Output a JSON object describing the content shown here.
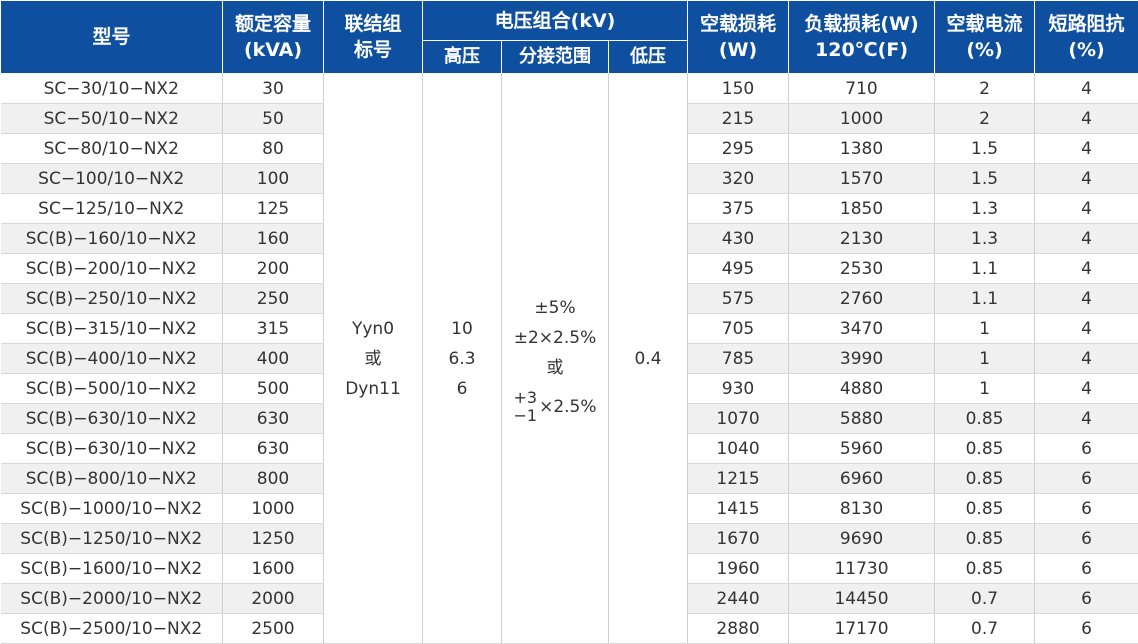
{
  "header": {
    "model": "型号",
    "capacity": "额定容量\n(kVA)",
    "connection": "联结组\n标号",
    "voltage_group": "电压组合(kV)",
    "hv": "高压",
    "tap_range": "分接范围",
    "lv": "低压",
    "no_load_loss": "空载损耗\n(W)",
    "load_loss": "负载损耗(W)\n120℃(F)",
    "no_load_current": "空载电流\n(%)",
    "impedance": "短路阻抗\n(%)"
  },
  "merged": {
    "connection": [
      "Yyn0",
      "或",
      "Dyn11"
    ],
    "hv": [
      "10",
      "6.3",
      "6"
    ],
    "tap": {
      "line1": "±5%",
      "line2": "±2×2.5%",
      "line3": "或",
      "plus": "+3",
      "minus": "−1",
      "suffix": "×2.5%"
    },
    "lv": "0.4"
  },
  "rows": [
    {
      "model": "SC−30/10−NX2",
      "capacity": "30",
      "p0": "150",
      "pk": "710",
      "i0": "2",
      "uk": "4"
    },
    {
      "model": "SC−50/10−NX2",
      "capacity": "50",
      "p0": "215",
      "pk": "1000",
      "i0": "2",
      "uk": "4"
    },
    {
      "model": "SC−80/10−NX2",
      "capacity": "80",
      "p0": "295",
      "pk": "1380",
      "i0": "1.5",
      "uk": "4"
    },
    {
      "model": "SC−100/10−NX2",
      "capacity": "100",
      "p0": "320",
      "pk": "1570",
      "i0": "1.5",
      "uk": "4"
    },
    {
      "model": "SC−125/10−NX2",
      "capacity": "125",
      "p0": "375",
      "pk": "1850",
      "i0": "1.3",
      "uk": "4"
    },
    {
      "model": "SC(B)−160/10−NX2",
      "capacity": "160",
      "p0": "430",
      "pk": "2130",
      "i0": "1.3",
      "uk": "4"
    },
    {
      "model": "SC(B)−200/10−NX2",
      "capacity": "200",
      "p0": "495",
      "pk": "2530",
      "i0": "1.1",
      "uk": "4"
    },
    {
      "model": "SC(B)−250/10−NX2",
      "capacity": "250",
      "p0": "575",
      "pk": "2760",
      "i0": "1.1",
      "uk": "4"
    },
    {
      "model": "SC(B)−315/10−NX2",
      "capacity": "315",
      "p0": "705",
      "pk": "3470",
      "i0": "1",
      "uk": "4"
    },
    {
      "model": "SC(B)−400/10−NX2",
      "capacity": "400",
      "p0": "785",
      "pk": "3990",
      "i0": "1",
      "uk": "4"
    },
    {
      "model": "SC(B)−500/10−NX2",
      "capacity": "500",
      "p0": "930",
      "pk": "4880",
      "i0": "1",
      "uk": "4"
    },
    {
      "model": "SC(B)−630/10−NX2",
      "capacity": "630",
      "p0": "1070",
      "pk": "5880",
      "i0": "0.85",
      "uk": "4"
    },
    {
      "model": "SC(B)−630/10−NX2",
      "capacity": "630",
      "p0": "1040",
      "pk": "5960",
      "i0": "0.85",
      "uk": "6"
    },
    {
      "model": "SC(B)−800/10−NX2",
      "capacity": "800",
      "p0": "1215",
      "pk": "6960",
      "i0": "0.85",
      "uk": "6"
    },
    {
      "model": "SC(B)−1000/10−NX2",
      "capacity": "1000",
      "p0": "1415",
      "pk": "8130",
      "i0": "0.85",
      "uk": "6"
    },
    {
      "model": "SC(B)−1250/10−NX2",
      "capacity": "1250",
      "p0": "1670",
      "pk": "9690",
      "i0": "0.85",
      "uk": "6"
    },
    {
      "model": "SC(B)−1600/10−NX2",
      "capacity": "1600",
      "p0": "1960",
      "pk": "11730",
      "i0": "0.85",
      "uk": "6"
    },
    {
      "model": "SC(B)−2000/10−NX2",
      "capacity": "2000",
      "p0": "2440",
      "pk": "14450",
      "i0": "0.7",
      "uk": "6"
    },
    {
      "model": "SC(B)−2500/10−NX2",
      "capacity": "2500",
      "p0": "2880",
      "pk": "17170",
      "i0": "0.7",
      "uk": "6"
    }
  ],
  "colors": {
    "header_bg": "#0f4fa0",
    "stripe": "#f0f0f0"
  }
}
